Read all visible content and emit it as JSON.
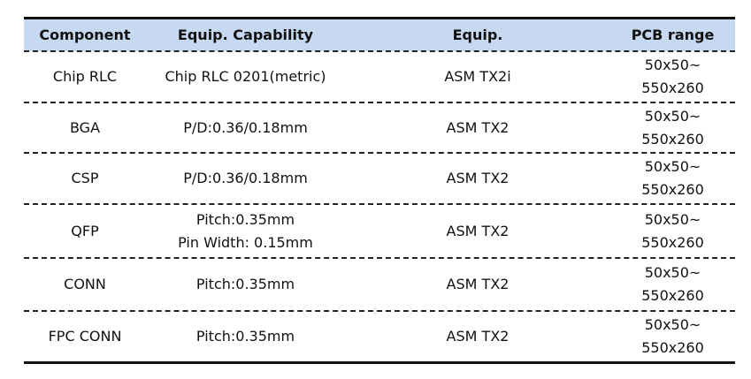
{
  "table": {
    "header": [
      "Component",
      "Equip. Capability",
      "Equip.",
      "PCB range"
    ],
    "rows": [
      [
        [
          "Chip RLC"
        ],
        [
          "Chip RLC 0201(metric)"
        ],
        [
          "ASM TX2i"
        ],
        [
          "50x50~",
          "550x260"
        ]
      ],
      [
        [
          "BGA"
        ],
        [
          "P/D:0.36/0.18mm"
        ],
        [
          "ASM TX2"
        ],
        [
          "50x50~",
          "550x260"
        ]
      ],
      [
        [
          "CSP"
        ],
        [
          "P/D:0.36/0.18mm"
        ],
        [
          "ASM TX2"
        ],
        [
          "50x50~",
          "550x260"
        ]
      ],
      [
        [
          "QFP"
        ],
        [
          "Pitch:0.35mm",
          "Pin Width: 0.15mm"
        ],
        [
          "ASM TX2"
        ],
        [
          "50x50~",
          "550x260"
        ]
      ],
      [
        [
          "CONN"
        ],
        [
          "Pitch:0.35mm"
        ],
        [
          "ASM TX2"
        ],
        [
          "50x50~",
          "550x260"
        ]
      ],
      [
        [
          "FPC CONN"
        ],
        [
          "Pitch:0.35mm"
        ],
        [
          "ASM TX2"
        ],
        [
          "50x50~",
          "550x260"
        ]
      ]
    ]
  }
}
